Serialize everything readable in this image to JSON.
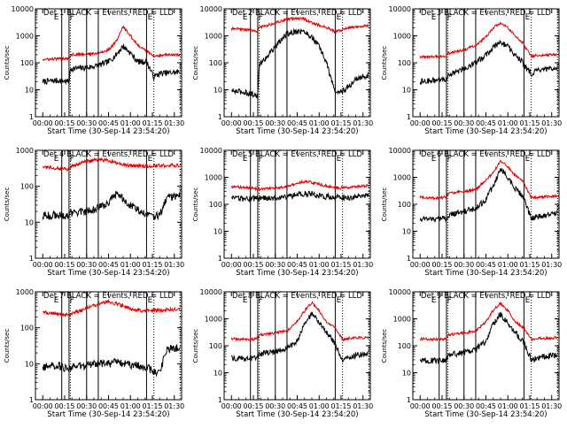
{
  "figure": {
    "black_legend": "BLACK = Events",
    "red_legend": "RED = LLD",
    "y_axis_label": "Counts/sec",
    "x_axis_label": "Start Time (30-Sep-14 23:54:20)",
    "x_tick_labels": [
      "00:00",
      "00:15",
      "00:30",
      "00:45",
      "01:00",
      "01:15",
      "01:30"
    ],
    "colors": {
      "events": "#000000",
      "lld": "#e00000",
      "axes": "#000000"
    }
  },
  "chart_data": [
    {
      "type": "line",
      "title": "Det 1",
      "detector": "Det 1",
      "x_unit": "minutes after 23:54:20",
      "xlim": [
        -5,
        95
      ],
      "y_scale": "log",
      "ylim": [
        1,
        10000
      ],
      "y_tick_labels": [
        "1",
        "10",
        "100",
        "1000",
        "10000"
      ],
      "markers": [
        "E",
        "F",
        "E"
      ],
      "solid_vlines": [
        13,
        18,
        30,
        38,
        71
      ],
      "dotted_vlines": [
        19,
        76,
        94
      ],
      "series": [
        {
          "name": "Events",
          "x": [
            0,
            10,
            18,
            19,
            30,
            38,
            45,
            50,
            55,
            60,
            65,
            70,
            71,
            76,
            80,
            85,
            94
          ],
          "y": [
            20,
            22,
            20,
            60,
            65,
            80,
            110,
            190,
            420,
            230,
            110,
            110,
            110,
            30,
            40,
            42,
            45
          ]
        },
        {
          "name": "LLD",
          "x": [
            0,
            10,
            18,
            19,
            30,
            38,
            45,
            50,
            55,
            60,
            65,
            70,
            71,
            76,
            80,
            85,
            94
          ],
          "y": [
            130,
            140,
            150,
            200,
            210,
            220,
            300,
            600,
            2200,
            1000,
            450,
            300,
            280,
            170,
            190,
            200,
            190
          ]
        }
      ]
    },
    {
      "type": "line",
      "title": "Det 2",
      "detector": "Det 2",
      "x_unit": "minutes after 23:54:20",
      "xlim": [
        -5,
        95
      ],
      "y_scale": "log",
      "ylim": [
        1,
        10000
      ],
      "y_tick_labels": [
        "1",
        "10",
        "100",
        "1000",
        "10000"
      ],
      "markers": [
        "E",
        "F",
        "E"
      ],
      "solid_vlines": [
        13,
        18,
        30,
        38,
        71
      ],
      "dotted_vlines": [
        19,
        76,
        94
      ],
      "series": [
        {
          "name": "Events",
          "x": [
            0,
            10,
            18,
            19,
            30,
            38,
            45,
            50,
            55,
            60,
            65,
            70,
            71,
            76,
            80,
            85,
            94
          ],
          "y": [
            9,
            8,
            6,
            80,
            400,
            1200,
            1500,
            1400,
            900,
            400,
            100,
            12,
            8,
            9,
            12,
            25,
            35
          ]
        },
        {
          "name": "LLD",
          "x": [
            0,
            10,
            18,
            19,
            30,
            38,
            45,
            50,
            55,
            60,
            65,
            70,
            71,
            76,
            80,
            85,
            94
          ],
          "y": [
            1800,
            1700,
            1500,
            2000,
            3000,
            4000,
            4500,
            4200,
            3000,
            2500,
            2000,
            1500,
            1400,
            1700,
            2000,
            2200,
            2400
          ]
        }
      ]
    },
    {
      "type": "line",
      "title": "Det 3",
      "detector": "Det 3",
      "x_unit": "minutes after 23:54:20",
      "xlim": [
        -5,
        95
      ],
      "y_scale": "log",
      "ylim": [
        1,
        10000
      ],
      "y_tick_labels": [
        "1",
        "10",
        "100",
        "1000",
        "10000"
      ],
      "markers": [
        "E",
        "F",
        "E"
      ],
      "solid_vlines": [
        13,
        18,
        30,
        38,
        71
      ],
      "dotted_vlines": [
        19,
        76,
        94
      ],
      "series": [
        {
          "name": "Events",
          "x": [
            0,
            10,
            18,
            19,
            30,
            38,
            45,
            50,
            55,
            60,
            65,
            70,
            71,
            76,
            80,
            85,
            94
          ],
          "y": [
            20,
            22,
            25,
            35,
            60,
            100,
            200,
            380,
            600,
            400,
            180,
            110,
            80,
            40,
            50,
            55,
            60
          ]
        },
        {
          "name": "LLD",
          "x": [
            0,
            10,
            18,
            19,
            30,
            38,
            45,
            50,
            55,
            60,
            65,
            70,
            71,
            76,
            80,
            85,
            94
          ],
          "y": [
            160,
            170,
            180,
            220,
            300,
            450,
            900,
            2000,
            3000,
            2000,
            1000,
            550,
            450,
            170,
            190,
            190,
            200
          ]
        }
      ]
    },
    {
      "type": "line",
      "title": "Det 4",
      "detector": "Det 4",
      "x_unit": "minutes after 23:54:20",
      "xlim": [
        -5,
        95
      ],
      "y_scale": "log",
      "ylim": [
        1,
        1000
      ],
      "y_tick_labels": [
        "1",
        "10",
        "100",
        "1000"
      ],
      "markers": [
        "E",
        "F",
        "E"
      ],
      "solid_vlines": [
        13,
        18,
        30,
        38,
        71
      ],
      "dotted_vlines": [
        19,
        76,
        94
      ],
      "series": [
        {
          "name": "Events",
          "x": [
            0,
            10,
            18,
            19,
            30,
            38,
            45,
            50,
            55,
            60,
            65,
            70,
            71,
            76,
            80,
            85,
            94
          ],
          "y": [
            15,
            16,
            14,
            18,
            20,
            25,
            35,
            60,
            45,
            30,
            22,
            18,
            17,
            15,
            15,
            50,
            55
          ]
        },
        {
          "name": "LLD",
          "x": [
            0,
            10,
            18,
            19,
            30,
            38,
            45,
            50,
            55,
            60,
            65,
            70,
            71,
            76,
            80,
            85,
            94
          ],
          "y": [
            340,
            320,
            300,
            350,
            500,
            550,
            520,
            450,
            400,
            380,
            370,
            360,
            360,
            370,
            380,
            380,
            380
          ]
        }
      ]
    },
    {
      "type": "line",
      "title": "Det 5",
      "detector": "Det 5",
      "x_unit": "minutes after 23:54:20",
      "xlim": [
        -5,
        95
      ],
      "y_scale": "log",
      "ylim": [
        1,
        10000
      ],
      "y_tick_labels": [
        "1",
        "10",
        "100",
        "1000",
        "10000"
      ],
      "markers": [
        "E",
        "F",
        "E"
      ],
      "solid_vlines": [
        13,
        18,
        30,
        38,
        71
      ],
      "dotted_vlines": [
        19,
        76,
        94
      ],
      "series": [
        {
          "name": "Events",
          "x": [
            0,
            10,
            18,
            19,
            30,
            38,
            45,
            50,
            55,
            60,
            65,
            70,
            71,
            76,
            80,
            85,
            94
          ],
          "y": [
            160,
            160,
            165,
            170,
            175,
            190,
            230,
            250,
            230,
            200,
            190,
            185,
            185,
            180,
            180,
            185,
            200
          ]
        },
        {
          "name": "LLD",
          "x": [
            0,
            10,
            18,
            19,
            30,
            38,
            45,
            50,
            55,
            60,
            65,
            70,
            71,
            76,
            80,
            85,
            94
          ],
          "y": [
            450,
            420,
            380,
            380,
            400,
            450,
            600,
            700,
            650,
            550,
            480,
            420,
            420,
            400,
            420,
            450,
            480
          ]
        }
      ]
    },
    {
      "type": "line",
      "title": "Det 6",
      "detector": "Det 6",
      "x_unit": "minutes after 23:54:20",
      "xlim": [
        -5,
        95
      ],
      "y_scale": "log",
      "ylim": [
        1,
        10000
      ],
      "y_tick_labels": [
        "1",
        "10",
        "100",
        "1000",
        "10000"
      ],
      "markers": [
        "E",
        "F",
        "E"
      ],
      "solid_vlines": [
        13,
        18,
        30,
        38,
        71
      ],
      "dotted_vlines": [
        19,
        76,
        94
      ],
      "series": [
        {
          "name": "Events",
          "x": [
            0,
            10,
            18,
            19,
            30,
            38,
            45,
            50,
            55,
            60,
            65,
            70,
            71,
            76,
            80,
            85,
            94
          ],
          "y": [
            30,
            28,
            30,
            40,
            55,
            70,
            150,
            500,
            2000,
            1000,
            400,
            200,
            150,
            30,
            35,
            40,
            45
          ]
        },
        {
          "name": "LLD",
          "x": [
            0,
            10,
            18,
            19,
            30,
            38,
            45,
            50,
            55,
            60,
            65,
            70,
            71,
            76,
            80,
            85,
            94
          ],
          "y": [
            180,
            170,
            180,
            250,
            300,
            350,
            800,
            1500,
            4000,
            2500,
            1200,
            700,
            600,
            170,
            180,
            190,
            200
          ]
        }
      ]
    },
    {
      "type": "line",
      "title": "Det 7",
      "detector": "Det 7",
      "x_unit": "minutes after 23:54:20",
      "xlim": [
        -5,
        95
      ],
      "y_scale": "log",
      "ylim": [
        1,
        1000
      ],
      "y_tick_labels": [
        "1",
        "10",
        "100",
        "1000"
      ],
      "markers": [
        "E",
        "F",
        "E"
      ],
      "solid_vlines": [
        13,
        18,
        30,
        38,
        71
      ],
      "dotted_vlines": [
        19,
        76,
        94
      ],
      "series": [
        {
          "name": "Events",
          "x": [
            0,
            10,
            18,
            19,
            30,
            38,
            45,
            50,
            55,
            60,
            65,
            70,
            71,
            76,
            80,
            85,
            94
          ],
          "y": [
            8,
            9,
            7,
            8,
            9,
            10,
            10,
            11,
            10,
            9,
            9,
            8,
            8,
            6,
            6,
            25,
            28
          ]
        },
        {
          "name": "LLD",
          "x": [
            0,
            10,
            18,
            19,
            30,
            38,
            45,
            50,
            55,
            60,
            65,
            70,
            71,
            76,
            80,
            85,
            94
          ],
          "y": [
            270,
            250,
            220,
            240,
            350,
            450,
            520,
            480,
            400,
            340,
            310,
            300,
            300,
            300,
            310,
            320,
            320
          ]
        }
      ]
    },
    {
      "type": "line",
      "title": "Det 8",
      "detector": "Det 8",
      "x_unit": "minutes after 23:54:20",
      "xlim": [
        -5,
        95
      ],
      "y_scale": "log",
      "ylim": [
        1,
        10000
      ],
      "y_tick_labels": [
        "1",
        "10",
        "100",
        "1000",
        "10000"
      ],
      "markers": [
        "E",
        "F",
        "E"
      ],
      "solid_vlines": [
        13,
        18,
        30,
        38,
        71
      ],
      "dotted_vlines": [
        19,
        76,
        94
      ],
      "series": [
        {
          "name": "Events",
          "x": [
            0,
            10,
            18,
            19,
            30,
            38,
            45,
            50,
            55,
            60,
            65,
            70,
            71,
            76,
            80,
            85,
            94
          ],
          "y": [
            35,
            33,
            35,
            50,
            60,
            80,
            150,
            700,
            1500,
            700,
            300,
            150,
            120,
            30,
            35,
            45,
            50
          ]
        },
        {
          "name": "LLD",
          "x": [
            0,
            10,
            18,
            19,
            30,
            38,
            45,
            50,
            55,
            60,
            65,
            70,
            71,
            76,
            80,
            85,
            94
          ],
          "y": [
            180,
            170,
            180,
            250,
            300,
            350,
            800,
            2000,
            4000,
            2000,
            800,
            500,
            450,
            170,
            190,
            190,
            200
          ]
        }
      ]
    },
    {
      "type": "line",
      "title": "Det 9",
      "detector": "Det 9",
      "x_unit": "minutes after 23:54:20",
      "xlim": [
        -5,
        95
      ],
      "y_scale": "log",
      "ylim": [
        1,
        10000
      ],
      "y_tick_labels": [
        "1",
        "10",
        "100",
        "1000",
        "10000"
      ],
      "markers": [
        "E",
        "F",
        "E"
      ],
      "solid_vlines": [
        13,
        18,
        30,
        38,
        71
      ],
      "dotted_vlines": [
        19,
        76,
        94
      ],
      "series": [
        {
          "name": "Events",
          "x": [
            0,
            10,
            18,
            19,
            30,
            38,
            45,
            50,
            55,
            60,
            65,
            70,
            71,
            76,
            80,
            85,
            94
          ],
          "y": [
            30,
            28,
            30,
            45,
            55,
            75,
            150,
            650,
            1500,
            700,
            300,
            150,
            120,
            30,
            35,
            40,
            45
          ]
        },
        {
          "name": "LLD",
          "x": [
            0,
            10,
            18,
            19,
            30,
            38,
            45,
            50,
            55,
            60,
            65,
            70,
            71,
            76,
            80,
            85,
            94
          ],
          "y": [
            180,
            170,
            180,
            250,
            300,
            350,
            800,
            2000,
            3800,
            2000,
            800,
            500,
            450,
            170,
            190,
            190,
            200
          ]
        }
      ]
    }
  ]
}
